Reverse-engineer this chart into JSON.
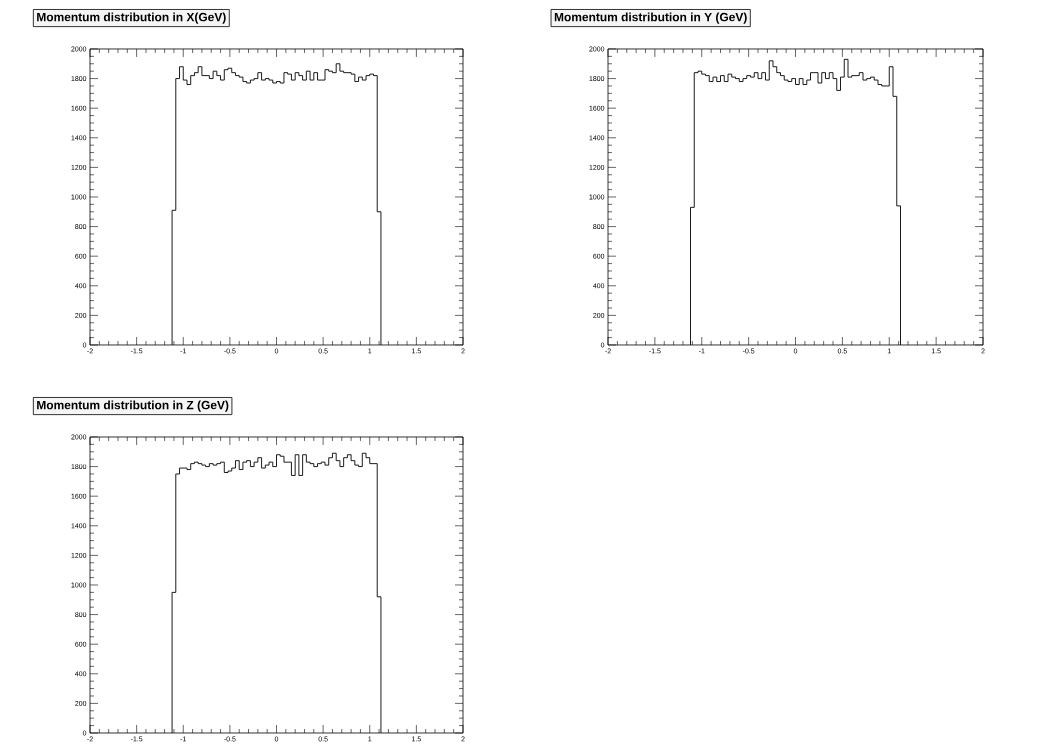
{
  "chart_data": [
    {
      "type": "histogram",
      "title": "Momentum distribution in X(GeV)",
      "color": "#000000",
      "grid": false,
      "bins": [
        -1.12,
        -1.08,
        -1.04,
        -1.0,
        -0.96,
        -0.92,
        -0.88,
        -0.84,
        -0.8,
        -0.76,
        -0.72,
        -0.68,
        -0.64,
        -0.6,
        -0.56,
        -0.52,
        -0.48,
        -0.44,
        -0.4,
        -0.36,
        -0.32,
        -0.28,
        -0.24,
        -0.2,
        -0.16,
        -0.12,
        -0.08,
        -0.04,
        0.0,
        0.04,
        0.08,
        0.12,
        0.16,
        0.2,
        0.24,
        0.28,
        0.32,
        0.36,
        0.4,
        0.44,
        0.48,
        0.52,
        0.56,
        0.6,
        0.64,
        0.68,
        0.72,
        0.76,
        0.8,
        0.84,
        0.88,
        0.92,
        0.96,
        1.0,
        1.04,
        1.08,
        1.12
      ],
      "values": [
        910,
        1800,
        1880,
        1790,
        1760,
        1820,
        1840,
        1880,
        1820,
        1820,
        1800,
        1850,
        1820,
        1790,
        1860,
        1870,
        1840,
        1820,
        1810,
        1780,
        1770,
        1790,
        1800,
        1840,
        1790,
        1800,
        1790,
        1770,
        1780,
        1770,
        1840,
        1830,
        1790,
        1840,
        1820,
        1790,
        1850,
        1790,
        1840,
        1790,
        1790,
        1860,
        1850,
        1840,
        1900,
        1850,
        1840,
        1840,
        1830,
        1780,
        1810,
        1790,
        1820,
        1830,
        1820,
        900
      ],
      "xlim": [
        -2,
        2
      ],
      "ylim": [
        0,
        2000
      ],
      "xticks": [
        -2,
        -1.5,
        -1,
        -0.5,
        0,
        0.5,
        1,
        1.5,
        2
      ],
      "yticks": [
        0,
        200,
        400,
        600,
        800,
        1000,
        1200,
        1400,
        1600,
        1800,
        2000
      ]
    },
    {
      "type": "histogram",
      "title": "Momentum distribution in Y (GeV)",
      "color": "#000000",
      "grid": false,
      "bins": [
        -1.12,
        -1.08,
        -1.04,
        -1.0,
        -0.96,
        -0.92,
        -0.88,
        -0.84,
        -0.8,
        -0.76,
        -0.72,
        -0.68,
        -0.64,
        -0.6,
        -0.56,
        -0.52,
        -0.48,
        -0.44,
        -0.4,
        -0.36,
        -0.32,
        -0.28,
        -0.24,
        -0.2,
        -0.16,
        -0.12,
        -0.08,
        -0.04,
        0.0,
        0.04,
        0.08,
        0.12,
        0.16,
        0.2,
        0.24,
        0.28,
        0.32,
        0.36,
        0.4,
        0.44,
        0.48,
        0.52,
        0.56,
        0.6,
        0.64,
        0.68,
        0.72,
        0.76,
        0.8,
        0.84,
        0.88,
        0.92,
        0.96,
        1.0,
        1.04,
        1.08,
        1.12
      ],
      "values": [
        930,
        1840,
        1850,
        1830,
        1820,
        1780,
        1810,
        1780,
        1820,
        1780,
        1830,
        1810,
        1800,
        1780,
        1800,
        1820,
        1810,
        1840,
        1800,
        1840,
        1790,
        1920,
        1880,
        1840,
        1820,
        1790,
        1780,
        1800,
        1760,
        1800,
        1760,
        1790,
        1840,
        1840,
        1770,
        1840,
        1800,
        1840,
        1800,
        1720,
        1810,
        1930,
        1810,
        1820,
        1820,
        1840,
        1790,
        1800,
        1810,
        1790,
        1760,
        1750,
        1750,
        1880,
        1680,
        940
      ],
      "xlim": [
        -2,
        2
      ],
      "ylim": [
        0,
        2000
      ],
      "xticks": [
        -2,
        -1.5,
        -1,
        -0.5,
        0,
        0.5,
        1,
        1.5,
        2
      ],
      "yticks": [
        0,
        200,
        400,
        600,
        800,
        1000,
        1200,
        1400,
        1600,
        1800,
        2000
      ]
    },
    {
      "type": "histogram",
      "title": "Momentum distribution in Z (GeV)",
      "color": "#000000",
      "grid": false,
      "bins": [
        -1.12,
        -1.08,
        -1.04,
        -1.0,
        -0.96,
        -0.92,
        -0.88,
        -0.84,
        -0.8,
        -0.76,
        -0.72,
        -0.68,
        -0.64,
        -0.6,
        -0.56,
        -0.52,
        -0.48,
        -0.44,
        -0.4,
        -0.36,
        -0.32,
        -0.28,
        -0.24,
        -0.2,
        -0.16,
        -0.12,
        -0.08,
        -0.04,
        0.0,
        0.04,
        0.08,
        0.12,
        0.16,
        0.2,
        0.24,
        0.28,
        0.32,
        0.36,
        0.4,
        0.44,
        0.48,
        0.52,
        0.56,
        0.6,
        0.64,
        0.68,
        0.72,
        0.76,
        0.8,
        0.84,
        0.88,
        0.92,
        0.96,
        1.0,
        1.04,
        1.08,
        1.12
      ],
      "values": [
        950,
        1750,
        1790,
        1790,
        1780,
        1820,
        1830,
        1820,
        1810,
        1800,
        1820,
        1810,
        1820,
        1830,
        1760,
        1770,
        1790,
        1840,
        1780,
        1830,
        1840,
        1800,
        1830,
        1860,
        1790,
        1810,
        1830,
        1800,
        1880,
        1870,
        1830,
        1830,
        1740,
        1880,
        1740,
        1880,
        1830,
        1820,
        1800,
        1820,
        1830,
        1810,
        1860,
        1890,
        1840,
        1800,
        1860,
        1880,
        1840,
        1810,
        1800,
        1890,
        1860,
        1820,
        1820,
        920
      ],
      "xlim": [
        -2,
        2
      ],
      "ylim": [
        0,
        2000
      ],
      "xticks": [
        -2,
        -1.5,
        -1,
        -0.5,
        0,
        0.5,
        1,
        1.5,
        2
      ],
      "yticks": [
        0,
        200,
        400,
        600,
        800,
        1000,
        1200,
        1400,
        1600,
        1800,
        2000
      ]
    }
  ]
}
